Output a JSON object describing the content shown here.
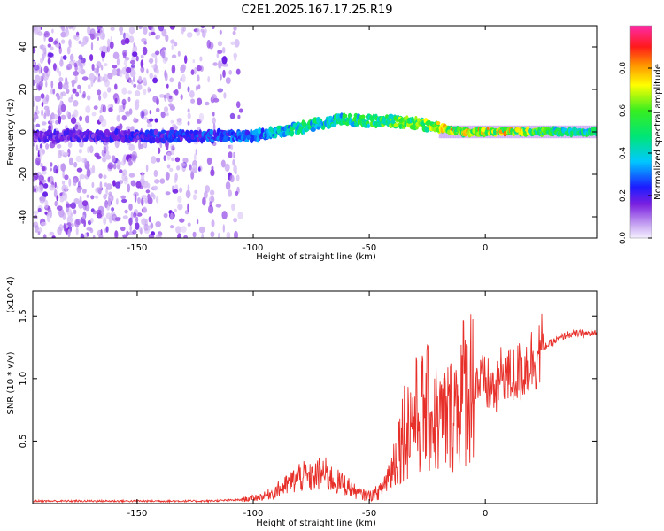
{
  "title": "C2E1.2025.167.17.25.R19",
  "colorbar": {
    "label": "Normalized spectral amplitude",
    "ticks": [
      "0.0",
      "0.2",
      "0.4",
      "0.6",
      "0.8"
    ],
    "tick_values": [
      0.0,
      0.2,
      0.4,
      0.6,
      0.8
    ]
  },
  "chart_data": [
    {
      "type": "heatmap",
      "title": "C2E1.2025.167.17.25.R19",
      "xlabel": "Height of straight line (km)",
      "ylabel": "Frequency (Hz)",
      "xlim": [
        -195,
        48
      ],
      "ylim": [
        -50,
        50
      ],
      "xticks": [
        -150,
        -100,
        -50,
        0
      ],
      "yticks": [
        -40,
        -20,
        0,
        20,
        40
      ],
      "colorbar_range": [
        0,
        1
      ],
      "colormap": "rainbow (purple to red)",
      "ridge": {
        "x": [
          -195,
          -150,
          -120,
          -100,
          -90,
          -80,
          -70,
          -60,
          -50,
          -40,
          -30,
          -20,
          -10,
          0,
          10,
          20,
          30,
          48
        ],
        "y": [
          -2,
          -2,
          -2,
          -2,
          0,
          2,
          4,
          6,
          5,
          5,
          4,
          2,
          0,
          0,
          0,
          0,
          0,
          0
        ],
        "amplitude": [
          0.2,
          0.25,
          0.3,
          0.35,
          0.45,
          0.55,
          0.5,
          0.55,
          0.6,
          0.65,
          0.7,
          0.75,
          0.85,
          0.8,
          0.85,
          0.7,
          0.55,
          0.55
        ]
      }
    },
    {
      "type": "line",
      "xlabel": "Height of straight line (km)",
      "ylabel": "SNR (10 * v/v)",
      "y_multiplier": "(x10^4)",
      "xlim": [
        -195,
        48
      ],
      "ylim": [
        0,
        1.7
      ],
      "xticks": [
        -150,
        -100,
        -50,
        0
      ],
      "yticks": [
        0.5,
        1.0,
        1.5
      ],
      "color": "#e8302a",
      "x": [
        -195,
        -150,
        -120,
        -105,
        -95,
        -85,
        -80,
        -75,
        -70,
        -65,
        -60,
        -55,
        -50,
        -45,
        -40,
        -35,
        -30,
        -25,
        -20,
        -15,
        -10,
        -5,
        0,
        5,
        8,
        10,
        15,
        20,
        25,
        30,
        35,
        40,
        48
      ],
      "y": [
        0.02,
        0.02,
        0.02,
        0.03,
        0.06,
        0.15,
        0.22,
        0.2,
        0.25,
        0.18,
        0.15,
        0.08,
        0.06,
        0.1,
        0.3,
        0.6,
        0.7,
        0.75,
        0.65,
        0.7,
        0.9,
        1.0,
        0.95,
        0.9,
        1.1,
        1.0,
        1.05,
        1.15,
        1.25,
        1.3,
        1.35,
        1.36,
        1.36
      ]
    }
  ]
}
